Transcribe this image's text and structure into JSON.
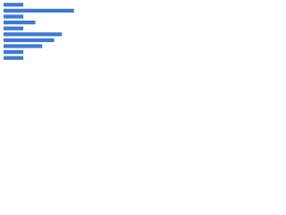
{
  "chart_data": {
    "type": "bar",
    "orientation": "horizontal",
    "values": [
      23,
      82,
      23,
      37,
      23,
      68,
      59,
      45,
      23,
      23
    ],
    "color": "#3d7ad6",
    "xlim": [
      0,
      100
    ]
  }
}
